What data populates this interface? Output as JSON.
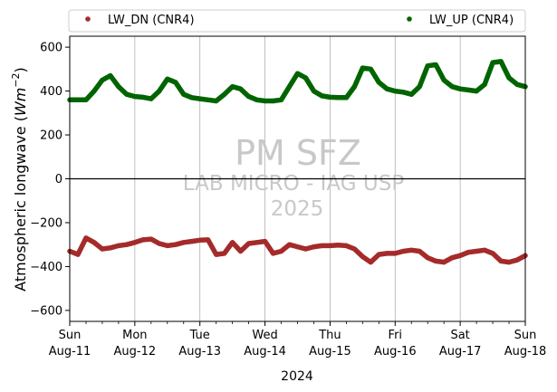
{
  "chart_data": {
    "type": "scatter",
    "xlabel": "2024",
    "ylabel": "Atmospheric longwave (Wm^-2)",
    "ylabel_parts": {
      "main": "Atmospheric longwave (",
      "italic": "Wm",
      "sup": "−2",
      "close": ")"
    },
    "x_start": "2024-08-11",
    "x_end": "2024-08-18",
    "x_ticks": [
      {
        "day": "Sun",
        "date": "Aug-11"
      },
      {
        "day": "Mon",
        "date": "Aug-12"
      },
      {
        "day": "Tue",
        "date": "Aug-13"
      },
      {
        "day": "Wed",
        "date": "Aug-14"
      },
      {
        "day": "Thu",
        "date": "Aug-15"
      },
      {
        "day": "Fri",
        "date": "Aug-16"
      },
      {
        "day": "Sat",
        "date": "Aug-17"
      },
      {
        "day": "Sun",
        "date": "Aug-18"
      }
    ],
    "ylim": [
      -650,
      650
    ],
    "y_ticks": [
      -600,
      -400,
      -200,
      0,
      200,
      400,
      600
    ],
    "y_tick_labels": [
      "−600",
      "−400",
      "−200",
      "0",
      "200",
      "400",
      "600"
    ],
    "grid": "vertical",
    "zero_line": true,
    "legend_position": "top",
    "watermark": [
      "PM SFZ",
      "LAB MICRO - IAG USP",
      "2025"
    ],
    "series": [
      {
        "name": "LW_DN (CNR4)",
        "color": "#a52a2a",
        "x": [
          "2024-08-11 00:00",
          "2024-08-11 03:00",
          "2024-08-11 06:00",
          "2024-08-11 09:00",
          "2024-08-11 12:00",
          "2024-08-11 15:00",
          "2024-08-11 18:00",
          "2024-08-11 21:00",
          "2024-08-12 00:00",
          "2024-08-12 03:00",
          "2024-08-12 06:00",
          "2024-08-12 09:00",
          "2024-08-12 12:00",
          "2024-08-12 15:00",
          "2024-08-12 18:00",
          "2024-08-12 21:00",
          "2024-08-13 00:00",
          "2024-08-13 03:00",
          "2024-08-13 06:00",
          "2024-08-13 09:00",
          "2024-08-13 12:00",
          "2024-08-13 15:00",
          "2024-08-13 18:00",
          "2024-08-13 21:00",
          "2024-08-14 00:00",
          "2024-08-14 03:00",
          "2024-08-14 06:00",
          "2024-08-14 09:00",
          "2024-08-14 12:00",
          "2024-08-14 15:00",
          "2024-08-14 18:00",
          "2024-08-14 21:00",
          "2024-08-15 00:00",
          "2024-08-15 03:00",
          "2024-08-15 06:00",
          "2024-08-15 09:00",
          "2024-08-15 12:00",
          "2024-08-15 15:00",
          "2024-08-15 18:00",
          "2024-08-15 21:00",
          "2024-08-16 00:00",
          "2024-08-16 03:00",
          "2024-08-16 06:00",
          "2024-08-16 09:00",
          "2024-08-16 12:00",
          "2024-08-16 15:00",
          "2024-08-16 18:00",
          "2024-08-16 21:00",
          "2024-08-17 00:00",
          "2024-08-17 03:00",
          "2024-08-17 06:00",
          "2024-08-17 09:00",
          "2024-08-17 12:00",
          "2024-08-17 15:00",
          "2024-08-17 18:00",
          "2024-08-17 21:00",
          "2024-08-18 00:00"
        ],
        "y": [
          -330,
          -345,
          -270,
          -290,
          -320,
          -315,
          -305,
          -300,
          -290,
          -278,
          -275,
          -295,
          -305,
          -300,
          -290,
          -285,
          -280,
          -278,
          -345,
          -340,
          -290,
          -330,
          -295,
          -290,
          -285,
          -340,
          -330,
          -300,
          -310,
          -320,
          -310,
          -305,
          -305,
          -302,
          -305,
          -320,
          -355,
          -380,
          -345,
          -340,
          -340,
          -330,
          -325,
          -330,
          -360,
          -375,
          -380,
          -360,
          -350,
          -335,
          -330,
          -325,
          -340,
          -375,
          -380,
          -370,
          -350
        ]
      },
      {
        "name": "LW_UP (CNR4)",
        "color": "#006400",
        "x": [
          "2024-08-11 00:00",
          "2024-08-11 03:00",
          "2024-08-11 06:00",
          "2024-08-11 09:00",
          "2024-08-11 12:00",
          "2024-08-11 15:00",
          "2024-08-11 18:00",
          "2024-08-11 21:00",
          "2024-08-12 00:00",
          "2024-08-12 03:00",
          "2024-08-12 06:00",
          "2024-08-12 09:00",
          "2024-08-12 12:00",
          "2024-08-12 15:00",
          "2024-08-12 18:00",
          "2024-08-12 21:00",
          "2024-08-13 00:00",
          "2024-08-13 03:00",
          "2024-08-13 06:00",
          "2024-08-13 09:00",
          "2024-08-13 12:00",
          "2024-08-13 15:00",
          "2024-08-13 18:00",
          "2024-08-13 21:00",
          "2024-08-14 00:00",
          "2024-08-14 03:00",
          "2024-08-14 06:00",
          "2024-08-14 09:00",
          "2024-08-14 12:00",
          "2024-08-14 15:00",
          "2024-08-14 18:00",
          "2024-08-14 21:00",
          "2024-08-15 00:00",
          "2024-08-15 03:00",
          "2024-08-15 06:00",
          "2024-08-15 09:00",
          "2024-08-15 12:00",
          "2024-08-15 15:00",
          "2024-08-15 18:00",
          "2024-08-15 21:00",
          "2024-08-16 00:00",
          "2024-08-16 03:00",
          "2024-08-16 06:00",
          "2024-08-16 09:00",
          "2024-08-16 12:00",
          "2024-08-16 15:00",
          "2024-08-16 18:00",
          "2024-08-16 21:00",
          "2024-08-17 00:00",
          "2024-08-17 03:00",
          "2024-08-17 06:00",
          "2024-08-17 09:00",
          "2024-08-17 12:00",
          "2024-08-17 15:00",
          "2024-08-17 18:00",
          "2024-08-17 21:00",
          "2024-08-18 00:00"
        ],
        "y": [
          360,
          360,
          360,
          400,
          450,
          470,
          420,
          385,
          375,
          372,
          365,
          400,
          455,
          440,
          385,
          370,
          365,
          360,
          355,
          385,
          420,
          410,
          375,
          360,
          355,
          355,
          360,
          420,
          480,
          460,
          400,
          378,
          372,
          370,
          370,
          420,
          505,
          500,
          440,
          410,
          400,
          395,
          385,
          420,
          515,
          520,
          450,
          420,
          410,
          405,
          400,
          430,
          530,
          535,
          460,
          430,
          420
        ]
      }
    ]
  }
}
